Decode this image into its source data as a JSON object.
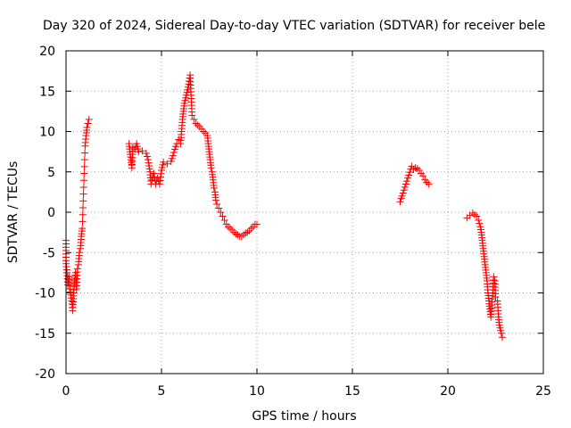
{
  "chart_data": {
    "type": "scatter",
    "title": "Day 320 of 2024, Sidereal Day-to-day VTEC variation (SDTVAR) for receiver bele",
    "xlabel": "GPS time / hours",
    "ylabel": "SDTVAR / TECUs",
    "xlim": [
      0,
      25
    ],
    "ylim": [
      -20,
      20
    ],
    "xticks": [
      0,
      5,
      10,
      15,
      20,
      25
    ],
    "yticks": [
      -20,
      -15,
      -10,
      -5,
      0,
      5,
      10,
      15,
      20
    ],
    "grid": true,
    "marker": "+",
    "color": "#ff0000",
    "series": [
      {
        "name": "SDTVAR",
        "segments": [
          [
            [
              0.0,
              -3.5
            ],
            [
              0.0,
              -6.0
            ],
            [
              0.05,
              -7.5
            ],
            [
              0.1,
              -9.0
            ],
            [
              0.15,
              -8.0
            ],
            [
              0.2,
              -9.5
            ],
            [
              0.3,
              -11.0
            ],
            [
              0.35,
              -12.2
            ],
            [
              0.4,
              -10.0
            ],
            [
              0.45,
              -8.5
            ],
            [
              0.5,
              -7.5
            ],
            [
              0.55,
              -9.5
            ],
            [
              0.6,
              -7.0
            ],
            [
              0.65,
              -6.5
            ],
            [
              0.7,
              -5.0
            ],
            [
              0.75,
              -4.5
            ],
            [
              0.8,
              -3.0
            ],
            [
              0.85,
              -2.0
            ],
            [
              1.0,
              8.2
            ],
            [
              1.05,
              9.5
            ],
            [
              1.1,
              10.5
            ],
            [
              1.15,
              11.0
            ],
            [
              1.2,
              11.5
            ]
          ],
          [
            [
              3.3,
              8.5
            ],
            [
              3.35,
              7.5
            ],
            [
              3.4,
              6.5
            ],
            [
              3.45,
              5.5
            ],
            [
              3.5,
              8.0
            ],
            [
              3.6,
              7.8
            ],
            [
              3.7,
              8.5
            ],
            [
              3.8,
              7.5
            ],
            [
              4.0,
              7.6
            ],
            [
              4.2,
              7.3
            ],
            [
              4.3,
              6.5
            ],
            [
              4.4,
              5.0
            ],
            [
              4.45,
              3.5
            ],
            [
              4.5,
              4.0
            ],
            [
              4.6,
              4.8
            ],
            [
              4.7,
              3.5
            ],
            [
              4.8,
              4.2
            ],
            [
              4.9,
              3.5
            ],
            [
              5.0,
              5.2
            ],
            [
              5.1,
              6.2
            ],
            [
              5.3,
              6.0
            ],
            [
              5.5,
              6.3
            ],
            [
              5.6,
              7.0
            ],
            [
              5.7,
              7.8
            ],
            [
              5.8,
              8.5
            ],
            [
              5.9,
              9.0
            ],
            [
              6.0,
              8.5
            ],
            [
              6.05,
              10.0
            ],
            [
              6.1,
              11.5
            ],
            [
              6.15,
              12.5
            ],
            [
              6.2,
              13.5
            ],
            [
              6.3,
              14.5
            ],
            [
              6.4,
              15.5
            ],
            [
              6.5,
              17.0
            ],
            [
              6.6,
              12.0
            ],
            [
              6.7,
              11.5
            ],
            [
              6.8,
              11.0
            ],
            [
              6.9,
              10.8
            ],
            [
              7.0,
              10.6
            ],
            [
              7.1,
              10.3
            ],
            [
              7.2,
              10.0
            ],
            [
              7.3,
              9.8
            ],
            [
              7.4,
              9.5
            ],
            [
              7.45,
              8.5
            ],
            [
              7.5,
              7.5
            ],
            [
              7.55,
              6.5
            ],
            [
              7.6,
              5.5
            ],
            [
              7.65,
              5.0
            ],
            [
              7.7,
              4.0
            ],
            [
              7.75,
              3.0
            ],
            [
              7.8,
              2.5
            ],
            [
              7.85,
              1.5
            ],
            [
              7.9,
              1.0
            ],
            [
              8.0,
              0.5
            ],
            [
              8.1,
              0.0
            ],
            [
              8.2,
              -0.5
            ],
            [
              8.3,
              -1.0
            ],
            [
              8.4,
              -1.5
            ],
            [
              8.5,
              -1.8
            ],
            [
              8.6,
              -2.0
            ],
            [
              8.7,
              -2.2
            ],
            [
              8.8,
              -2.5
            ],
            [
              8.9,
              -2.7
            ],
            [
              9.0,
              -2.8
            ],
            [
              9.1,
              -3.0
            ],
            [
              9.2,
              -3.0
            ],
            [
              9.3,
              -2.8
            ],
            [
              9.4,
              -2.6
            ],
            [
              9.5,
              -2.5
            ],
            [
              9.6,
              -2.3
            ],
            [
              9.7,
              -2.0
            ],
            [
              9.8,
              -1.8
            ],
            [
              9.9,
              -1.5
            ],
            [
              10.0,
              -1.5
            ]
          ],
          [
            [
              17.5,
              1.3
            ],
            [
              17.55,
              1.7
            ],
            [
              17.6,
              2.0
            ],
            [
              18.1,
              5.7
            ],
            [
              18.2,
              5.3
            ],
            [
              18.3,
              5.5
            ],
            [
              18.4,
              5.4
            ],
            [
              18.5,
              5.2
            ],
            [
              18.6,
              4.8
            ],
            [
              18.7,
              4.5
            ],
            [
              18.8,
              4.0
            ],
            [
              18.9,
              3.7
            ],
            [
              19.0,
              3.5
            ]
          ],
          [
            [
              21.0,
              -0.7
            ],
            [
              21.3,
              -0.1
            ],
            [
              21.4,
              -0.3
            ],
            [
              21.5,
              -0.5
            ],
            [
              21.6,
              -1.0
            ],
            [
              21.7,
              -1.8
            ],
            [
              21.75,
              -2.5
            ],
            [
              21.8,
              -3.5
            ],
            [
              21.85,
              -4.5
            ],
            [
              21.9,
              -5.5
            ],
            [
              21.95,
              -6.5
            ],
            [
              22.0,
              -7.5
            ],
            [
              22.05,
              -8.5
            ],
            [
              22.1,
              -10.0
            ],
            [
              22.15,
              -11.0
            ],
            [
              22.2,
              -12.0
            ],
            [
              22.25,
              -13.0
            ],
            [
              22.3,
              -11.5
            ],
            [
              22.35,
              -10.0
            ],
            [
              22.4,
              -8.0
            ],
            [
              22.45,
              -8.5
            ],
            [
              22.5,
              -10.5
            ],
            [
              22.6,
              -11.0
            ],
            [
              22.65,
              -13.0
            ],
            [
              22.7,
              -14.0
            ],
            [
              22.8,
              -15.0
            ],
            [
              22.85,
              -15.5
            ]
          ]
        ]
      }
    ]
  }
}
